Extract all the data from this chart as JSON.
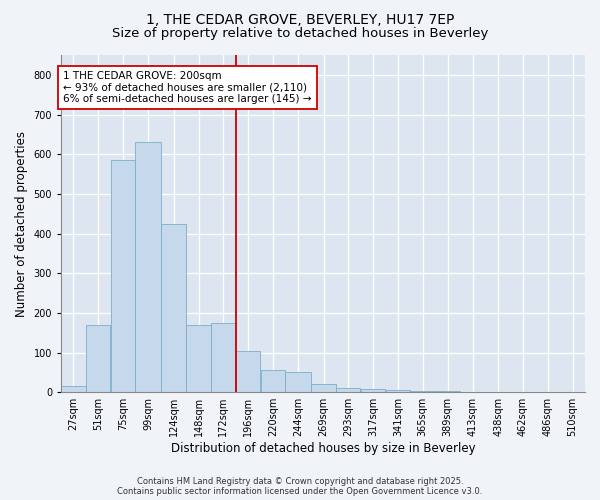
{
  "title": "1, THE CEDAR GROVE, BEVERLEY, HU17 7EP",
  "subtitle": "Size of property relative to detached houses in Beverley",
  "xlabel": "Distribution of detached houses by size in Beverley",
  "ylabel": "Number of detached properties",
  "bar_color": "#c6d9ec",
  "bar_edge_color": "#7aaec8",
  "background_color": "#dde6f0",
  "plot_bg_color": "#dde6f0",
  "grid_color": "#ffffff",
  "vline_x": 196,
  "vline_color": "#cc0000",
  "annotation_text": "1 THE CEDAR GROVE: 200sqm\n← 93% of detached houses are smaller (2,110)\n6% of semi-detached houses are larger (145) →",
  "annotation_box_color": "#ffffff",
  "annotation_box_edge": "#cc0000",
  "bins": [
    27,
    51,
    75,
    99,
    124,
    148,
    172,
    196,
    220,
    244,
    269,
    293,
    317,
    341,
    365,
    389,
    413,
    438,
    462,
    486,
    510
  ],
  "values": [
    15,
    170,
    585,
    630,
    425,
    170,
    175,
    105,
    55,
    50,
    20,
    10,
    8,
    5,
    3,
    2,
    1,
    0,
    0,
    0,
    1
  ],
  "ylim": [
    0,
    850
  ],
  "yticks": [
    0,
    100,
    200,
    300,
    400,
    500,
    600,
    700,
    800
  ],
  "footer": "Contains HM Land Registry data © Crown copyright and database right 2025.\nContains public sector information licensed under the Open Government Licence v3.0.",
  "title_fontsize": 10,
  "subtitle_fontsize": 9.5,
  "axis_fontsize": 8.5,
  "tick_fontsize": 7,
  "footer_fontsize": 6,
  "annot_fontsize": 7.5
}
